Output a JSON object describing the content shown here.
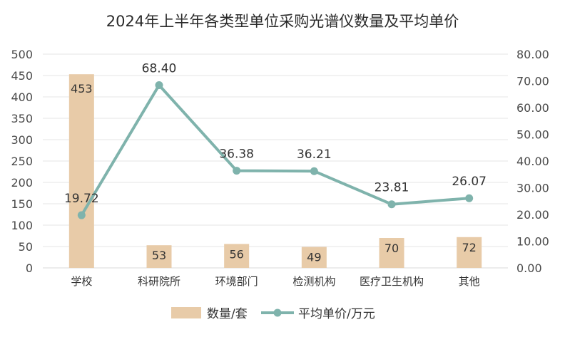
{
  "chart_data": {
    "type": "bar+line",
    "title": "2024年上半年各类型单位采购光谱仪数量及平均单价",
    "categories": [
      "学校",
      "科研院所",
      "环境部门",
      "检测机构",
      "医疗卫生机构",
      "其他"
    ],
    "series": [
      {
        "name": "数量/套",
        "type": "bar",
        "axis": "left",
        "values": [
          453,
          53,
          56,
          49,
          70,
          72
        ],
        "labels": [
          "453",
          "53",
          "56",
          "49",
          "70",
          "72"
        ],
        "color": "#e8cba8"
      },
      {
        "name": "平均单价/万元",
        "type": "line",
        "axis": "right",
        "values": [
          19.72,
          68.4,
          36.38,
          36.21,
          23.81,
          26.07
        ],
        "labels": [
          "19.72",
          "68.40",
          "36.38",
          "36.21",
          "23.81",
          "26.07"
        ],
        "color": "#7fb3ac"
      }
    ],
    "y_left": {
      "range": [
        0,
        500
      ],
      "ticks": [
        "0",
        "50",
        "100",
        "150",
        "200",
        "250",
        "300",
        "350",
        "400",
        "450",
        "500"
      ]
    },
    "y_right": {
      "range": [
        0,
        80
      ],
      "ticks": [
        "0.00",
        "10.00",
        "20.00",
        "30.00",
        "40.00",
        "50.00",
        "60.00",
        "70.00",
        "80.00"
      ]
    },
    "grid": true,
    "legend": "bottom-center"
  }
}
